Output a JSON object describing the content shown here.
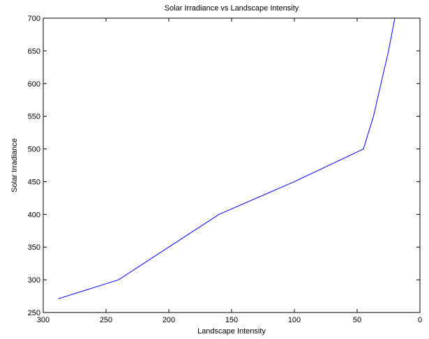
{
  "chart_data": {
    "type": "line",
    "title": "Solar Irradiance vs Landscape Intensity",
    "xlabel": "Landscape Intensity",
    "ylabel": "Solar Irradiance",
    "xlim": [
      300,
      0
    ],
    "ylim": [
      250,
      700
    ],
    "x_reversed": true,
    "grid": false,
    "xticks": [
      300,
      250,
      200,
      150,
      100,
      50,
      0
    ],
    "yticks": [
      250,
      300,
      350,
      400,
      450,
      500,
      550,
      600,
      650,
      700
    ],
    "series": [
      {
        "color": "#0000ff",
        "x": [
          288,
          240,
          200,
          160,
          100,
          45,
          37,
          31,
          25,
          20
        ],
        "y": [
          271,
          300,
          350,
          400,
          450,
          500,
          550,
          600,
          650,
          700
        ]
      }
    ]
  }
}
